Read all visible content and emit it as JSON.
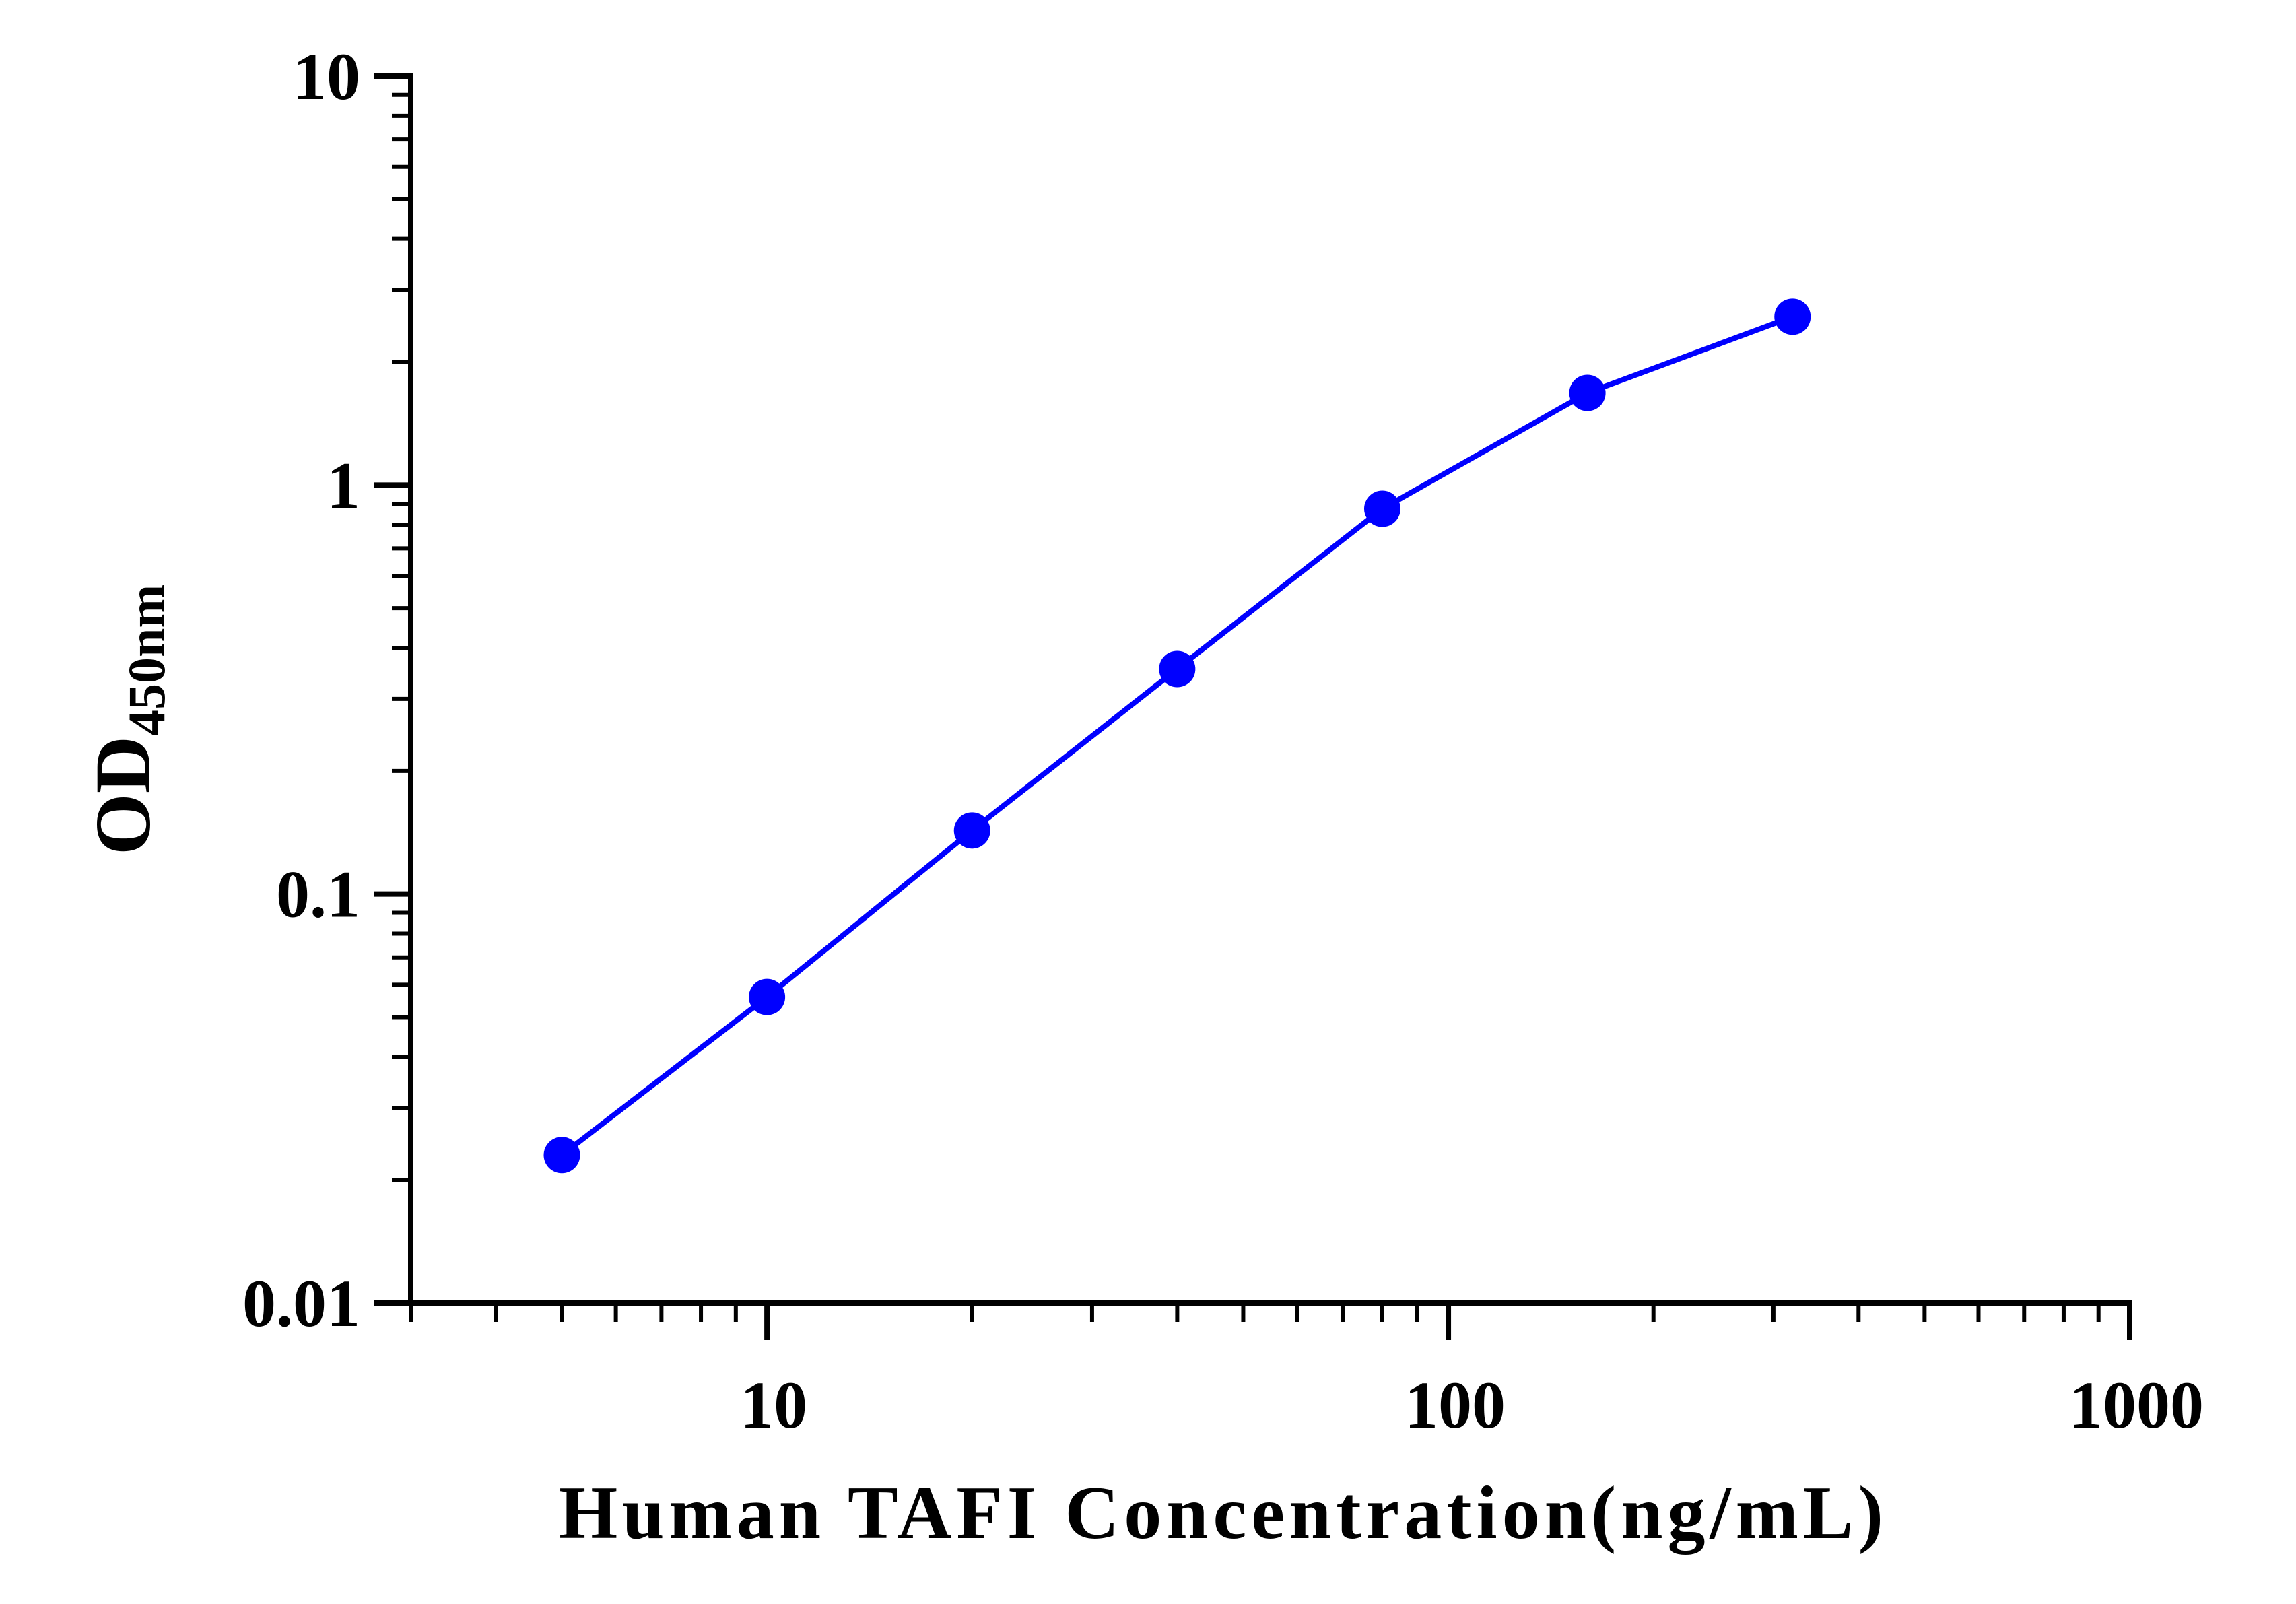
{
  "chart_data": {
    "type": "line",
    "xlabel": "Human TAFI Concentration(ng/mL)",
    "ylabel_main": "OD",
    "ylabel_sub": "450nm",
    "x_scale": "log",
    "y_scale": "log",
    "xlim": [
      3,
      1000
    ],
    "ylim": [
      0.01,
      10
    ],
    "x_ticks": [
      {
        "value": 10,
        "label": "10"
      },
      {
        "value": 100,
        "label": "100"
      },
      {
        "value": 1000,
        "label": "1000"
      }
    ],
    "y_ticks": [
      {
        "value": 0.01,
        "label": "0.01"
      },
      {
        "value": 0.1,
        "label": "0.1"
      },
      {
        "value": 1,
        "label": "1"
      },
      {
        "value": 10,
        "label": "10"
      }
    ],
    "grid": false,
    "legend": "none",
    "series": [
      {
        "color": "#0000ff",
        "marker": "circle",
        "x": [
          5,
          10,
          20,
          40,
          80,
          160,
          320
        ],
        "y": [
          0.023,
          0.056,
          0.143,
          0.355,
          0.875,
          1.68,
          2.58
        ]
      }
    ]
  }
}
